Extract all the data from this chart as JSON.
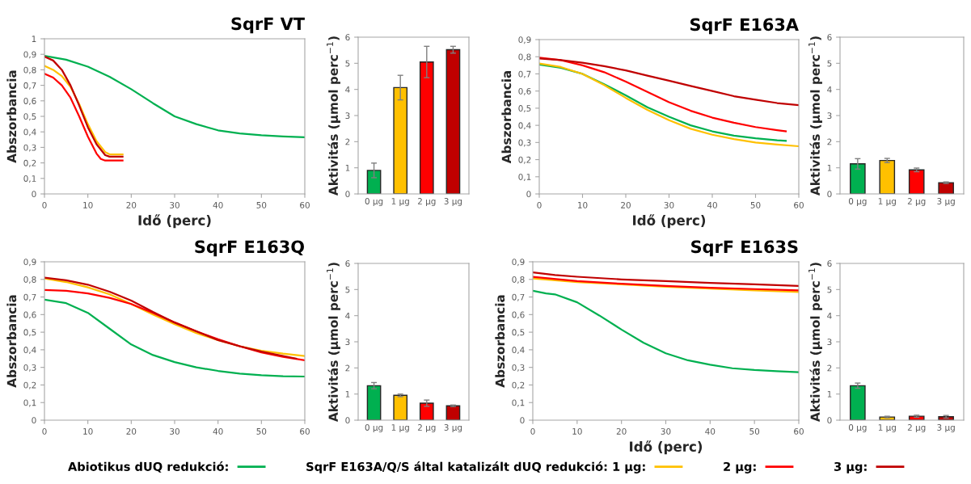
{
  "chart_data": [
    {
      "type": "line",
      "title": "SqrF VT",
      "xlabel": "Idő (perc)",
      "ylabel": "Abszorbancia",
      "legend": "bottom",
      "xlim": [
        0,
        60
      ],
      "xticks": [
        0,
        10,
        20,
        30,
        40,
        50,
        60
      ],
      "ylim": [
        0,
        1
      ],
      "yticks": [
        0,
        {
          "value": 0.1,
          "label": "0,1"
        },
        {
          "value": 0.2,
          "label": "0,2"
        },
        {
          "value": 0.3,
          "label": "0,3"
        },
        {
          "value": 0.4,
          "label": "0,4"
        },
        {
          "value": 0.5,
          "label": "0,5"
        },
        {
          "value": 0.6,
          "label": "0,6"
        },
        {
          "value": 0.7,
          "label": "0,7"
        },
        {
          "value": 0.8,
          "label": "0,8"
        },
        {
          "value": 0.9,
          "label": "0,9"
        },
        1
      ],
      "series": [
        {
          "name": "Abiotikus dUQ redukció:",
          "color": "#00b050",
          "x": [
            0,
            5,
            10,
            15,
            20,
            25,
            30,
            35,
            40,
            45,
            50,
            55,
            60
          ],
          "values": [
            0.89,
            0.865,
            0.82,
            0.755,
            0.675,
            0.585,
            0.5,
            0.45,
            0.41,
            0.39,
            0.378,
            0.37,
            0.365
          ]
        },
        {
          "name": "SqrF E163A/Q/S által katalizált dUQ redukció: 1 µg:",
          "color": "#ffc000",
          "x": [
            0,
            2,
            4,
            6,
            8,
            10,
            12,
            14,
            15,
            18
          ],
          "values": [
            0.825,
            0.8,
            0.76,
            0.69,
            0.58,
            0.45,
            0.34,
            0.27,
            0.255,
            0.255
          ]
        },
        {
          "name": "2 µg:",
          "color": "#ff0000",
          "x": [
            0,
            2,
            4,
            6,
            8,
            10,
            12,
            13,
            14,
            18
          ],
          "values": [
            0.775,
            0.75,
            0.7,
            0.62,
            0.5,
            0.37,
            0.26,
            0.225,
            0.215,
            0.215
          ]
        },
        {
          "name": "3 µg:",
          "color": "#c00000",
          "x": [
            0,
            2,
            4,
            6,
            8,
            10,
            12,
            14,
            15,
            18
          ],
          "values": [
            0.885,
            0.86,
            0.8,
            0.7,
            0.57,
            0.43,
            0.32,
            0.25,
            0.24,
            0.24
          ]
        }
      ]
    },
    {
      "type": "bar",
      "ylabel": "Aktivitás (µmol perc$^{−1}$)",
      "categories": [
        "0 µg",
        "1 µg",
        "2 µg",
        "3 µg"
      ],
      "values": [
        0.9,
        4.07,
        5.05,
        5.52
      ],
      "errors": [
        0.28,
        0.47,
        0.6,
        0.13
      ],
      "colors": [
        "#00b050",
        "#ffc000",
        "#ff0000",
        "#c00000"
      ],
      "ylim": [
        0,
        6
      ],
      "yticks": [
        0,
        1,
        2,
        3,
        4,
        5,
        6
      ]
    },
    {
      "type": "line",
      "title": "SqrF E163A",
      "xlabel": "Idő (perc)",
      "ylabel": "Abszorbancia",
      "xlim": [
        0,
        60
      ],
      "xticks": [
        0,
        10,
        20,
        30,
        40,
        50,
        60
      ],
      "ylim": [
        0,
        0.9
      ],
      "yticks": [
        0,
        {
          "value": 0.1,
          "label": "0,1"
        },
        {
          "value": 0.2,
          "label": "0,2"
        },
        {
          "value": 0.3,
          "label": "0,3"
        },
        {
          "value": 0.4,
          "label": "0,4"
        },
        {
          "value": 0.5,
          "label": "0,5"
        },
        {
          "value": 0.6,
          "label": "0,6"
        },
        {
          "value": 0.7,
          "label": "0,7"
        },
        {
          "value": 0.8,
          "label": "0,8"
        },
        {
          "value": 0.9,
          "label": "0,9"
        }
      ],
      "series": [
        {
          "color": "#00b050",
          "x": [
            0,
            5,
            10,
            15,
            20,
            25,
            30,
            35,
            40,
            45,
            50,
            55,
            57
          ],
          "values": [
            0.755,
            0.735,
            0.7,
            0.64,
            0.575,
            0.505,
            0.45,
            0.4,
            0.365,
            0.34,
            0.325,
            0.313,
            0.31
          ]
        },
        {
          "color": "#ffc000",
          "x": [
            0,
            5,
            10,
            15,
            20,
            25,
            30,
            35,
            40,
            45,
            50,
            55,
            60
          ],
          "values": [
            0.76,
            0.74,
            0.7,
            0.635,
            0.56,
            0.49,
            0.43,
            0.38,
            0.345,
            0.32,
            0.3,
            0.288,
            0.278
          ]
        },
        {
          "color": "#ff0000",
          "x": [
            0,
            5,
            10,
            15,
            20,
            25,
            30,
            35,
            40,
            45,
            50,
            55,
            57
          ],
          "values": [
            0.795,
            0.78,
            0.75,
            0.71,
            0.655,
            0.595,
            0.535,
            0.485,
            0.445,
            0.415,
            0.39,
            0.372,
            0.365
          ]
        },
        {
          "color": "#c00000",
          "x": [
            0,
            5,
            10,
            15,
            20,
            25,
            30,
            35,
            40,
            45,
            50,
            55,
            60
          ],
          "values": [
            0.79,
            0.78,
            0.765,
            0.745,
            0.72,
            0.69,
            0.66,
            0.63,
            0.6,
            0.57,
            0.55,
            0.53,
            0.518
          ]
        }
      ]
    },
    {
      "type": "bar",
      "ylabel": "Aktivitás (µmol perc$^{−1}$)",
      "categories": [
        "0 µg",
        "1 µg",
        "2 µg",
        "3 µg"
      ],
      "values": [
        1.15,
        1.28,
        0.92,
        0.43
      ],
      "errors": [
        0.2,
        0.08,
        0.07,
        0.03
      ],
      "colors": [
        "#00b050",
        "#ffc000",
        "#ff0000",
        "#c00000"
      ],
      "ylim": [
        0,
        6
      ],
      "yticks": [
        0,
        1,
        2,
        3,
        4,
        5,
        6
      ]
    },
    {
      "type": "line",
      "title": "SqrF E163Q",
      "ylabel": "Abszorbancia",
      "xlim": [
        0,
        60
      ],
      "xticks": [
        0,
        10,
        20,
        30,
        40,
        50,
        60
      ],
      "ylim": [
        0,
        0.9
      ],
      "yticks": [
        0,
        {
          "value": 0.1,
          "label": "0,1"
        },
        {
          "value": 0.2,
          "label": "0,2"
        },
        {
          "value": 0.3,
          "label": "0,3"
        },
        {
          "value": 0.4,
          "label": "0,4"
        },
        {
          "value": 0.5,
          "label": "0,5"
        },
        {
          "value": 0.6,
          "label": "0,6"
        },
        {
          "value": 0.7,
          "label": "0,7"
        },
        {
          "value": 0.8,
          "label": "0,8"
        },
        {
          "value": 0.9,
          "label": "0,9"
        }
      ],
      "series": [
        {
          "color": "#00b050",
          "x": [
            0,
            5,
            10,
            15,
            20,
            25,
            30,
            35,
            40,
            45,
            50,
            55,
            60
          ],
          "values": [
            0.685,
            0.665,
            0.61,
            0.52,
            0.43,
            0.37,
            0.33,
            0.3,
            0.28,
            0.265,
            0.255,
            0.25,
            0.248
          ]
        },
        {
          "color": "#ffc000",
          "x": [
            0,
            5,
            10,
            15,
            20,
            25,
            30,
            35,
            40,
            45,
            50,
            55,
            60
          ],
          "values": [
            0.805,
            0.785,
            0.755,
            0.715,
            0.66,
            0.6,
            0.545,
            0.495,
            0.455,
            0.42,
            0.395,
            0.378,
            0.365
          ]
        },
        {
          "color": "#ff0000",
          "x": [
            0,
            5,
            10,
            15,
            20,
            25,
            30,
            35,
            40,
            45,
            50,
            55,
            60
          ],
          "values": [
            0.74,
            0.735,
            0.72,
            0.695,
            0.66,
            0.61,
            0.555,
            0.505,
            0.46,
            0.42,
            0.385,
            0.36,
            0.34
          ]
        },
        {
          "color": "#c00000",
          "x": [
            0,
            5,
            10,
            15,
            20,
            25,
            30,
            35,
            40,
            45,
            50,
            55,
            58
          ],
          "values": [
            0.81,
            0.795,
            0.77,
            0.73,
            0.68,
            0.615,
            0.555,
            0.505,
            0.455,
            0.42,
            0.39,
            0.365,
            0.35
          ]
        }
      ]
    },
    {
      "type": "bar",
      "ylabel": "Aktivitás (µmol perc$^{−1}$)",
      "categories": [
        "0 µg",
        "1 µg",
        "2 µg",
        "3 µg"
      ],
      "values": [
        1.32,
        0.95,
        0.65,
        0.55
      ],
      "errors": [
        0.12,
        0.05,
        0.12,
        0.03
      ],
      "colors": [
        "#00b050",
        "#ffc000",
        "#ff0000",
        "#c00000"
      ],
      "ylim": [
        0,
        6
      ],
      "yticks": [
        0,
        1,
        2,
        3,
        4,
        5,
        6
      ]
    },
    {
      "type": "line",
      "title": "SqrF E163S",
      "xlabel": "Idő (perc)",
      "ylabel": "Abszorbancia",
      "xlim": [
        0,
        60
      ],
      "xticks": [
        0,
        10,
        20,
        30,
        40,
        50,
        60
      ],
      "ylim": [
        0,
        0.9
      ],
      "yticks": [
        0,
        {
          "value": 0.1,
          "label": "0,1"
        },
        {
          "value": 0.2,
          "label": "0,2"
        },
        {
          "value": 0.3,
          "label": "0,3"
        },
        {
          "value": 0.4,
          "label": "0,4"
        },
        {
          "value": 0.5,
          "label": "0,5"
        },
        {
          "value": 0.6,
          "label": "0,6"
        },
        {
          "value": 0.7,
          "label": "0,7"
        },
        {
          "value": 0.8,
          "label": "0,8"
        },
        {
          "value": 0.9,
          "label": "0,9"
        }
      ],
      "series": [
        {
          "color": "#00b050",
          "x": [
            0,
            3,
            5,
            10,
            15,
            20,
            25,
            30,
            35,
            40,
            45,
            50,
            55,
            60
          ],
          "values": [
            0.735,
            0.72,
            0.715,
            0.67,
            0.595,
            0.515,
            0.44,
            0.38,
            0.34,
            0.315,
            0.295,
            0.285,
            0.278,
            0.273
          ]
        },
        {
          "color": "#ffc000",
          "x": [
            0,
            10,
            20,
            30,
            40,
            50,
            60
          ],
          "values": [
            0.805,
            0.785,
            0.772,
            0.758,
            0.748,
            0.738,
            0.728
          ]
        },
        {
          "color": "#ff0000",
          "x": [
            0,
            10,
            20,
            30,
            40,
            50,
            60
          ],
          "values": [
            0.815,
            0.79,
            0.775,
            0.763,
            0.752,
            0.745,
            0.738
          ]
        },
        {
          "color": "#c00000",
          "x": [
            0,
            5,
            10,
            20,
            30,
            40,
            50,
            60
          ],
          "values": [
            0.84,
            0.825,
            0.815,
            0.8,
            0.79,
            0.78,
            0.772,
            0.763
          ]
        }
      ]
    },
    {
      "type": "bar",
      "ylabel": "Aktivitás (µmol perc$^{−1}$)",
      "categories": [
        "0 µg",
        "1 µg",
        "2 µg",
        "3 µg"
      ],
      "values": [
        1.32,
        0.12,
        0.15,
        0.13
      ],
      "errors": [
        0.1,
        0.03,
        0.04,
        0.05
      ],
      "colors": [
        "#00b050",
        "#ffc000",
        "#ff0000",
        "#c00000"
      ],
      "ylim": [
        0,
        6
      ],
      "yticks": [
        0,
        1,
        2,
        3,
        4,
        5,
        6
      ]
    }
  ]
}
